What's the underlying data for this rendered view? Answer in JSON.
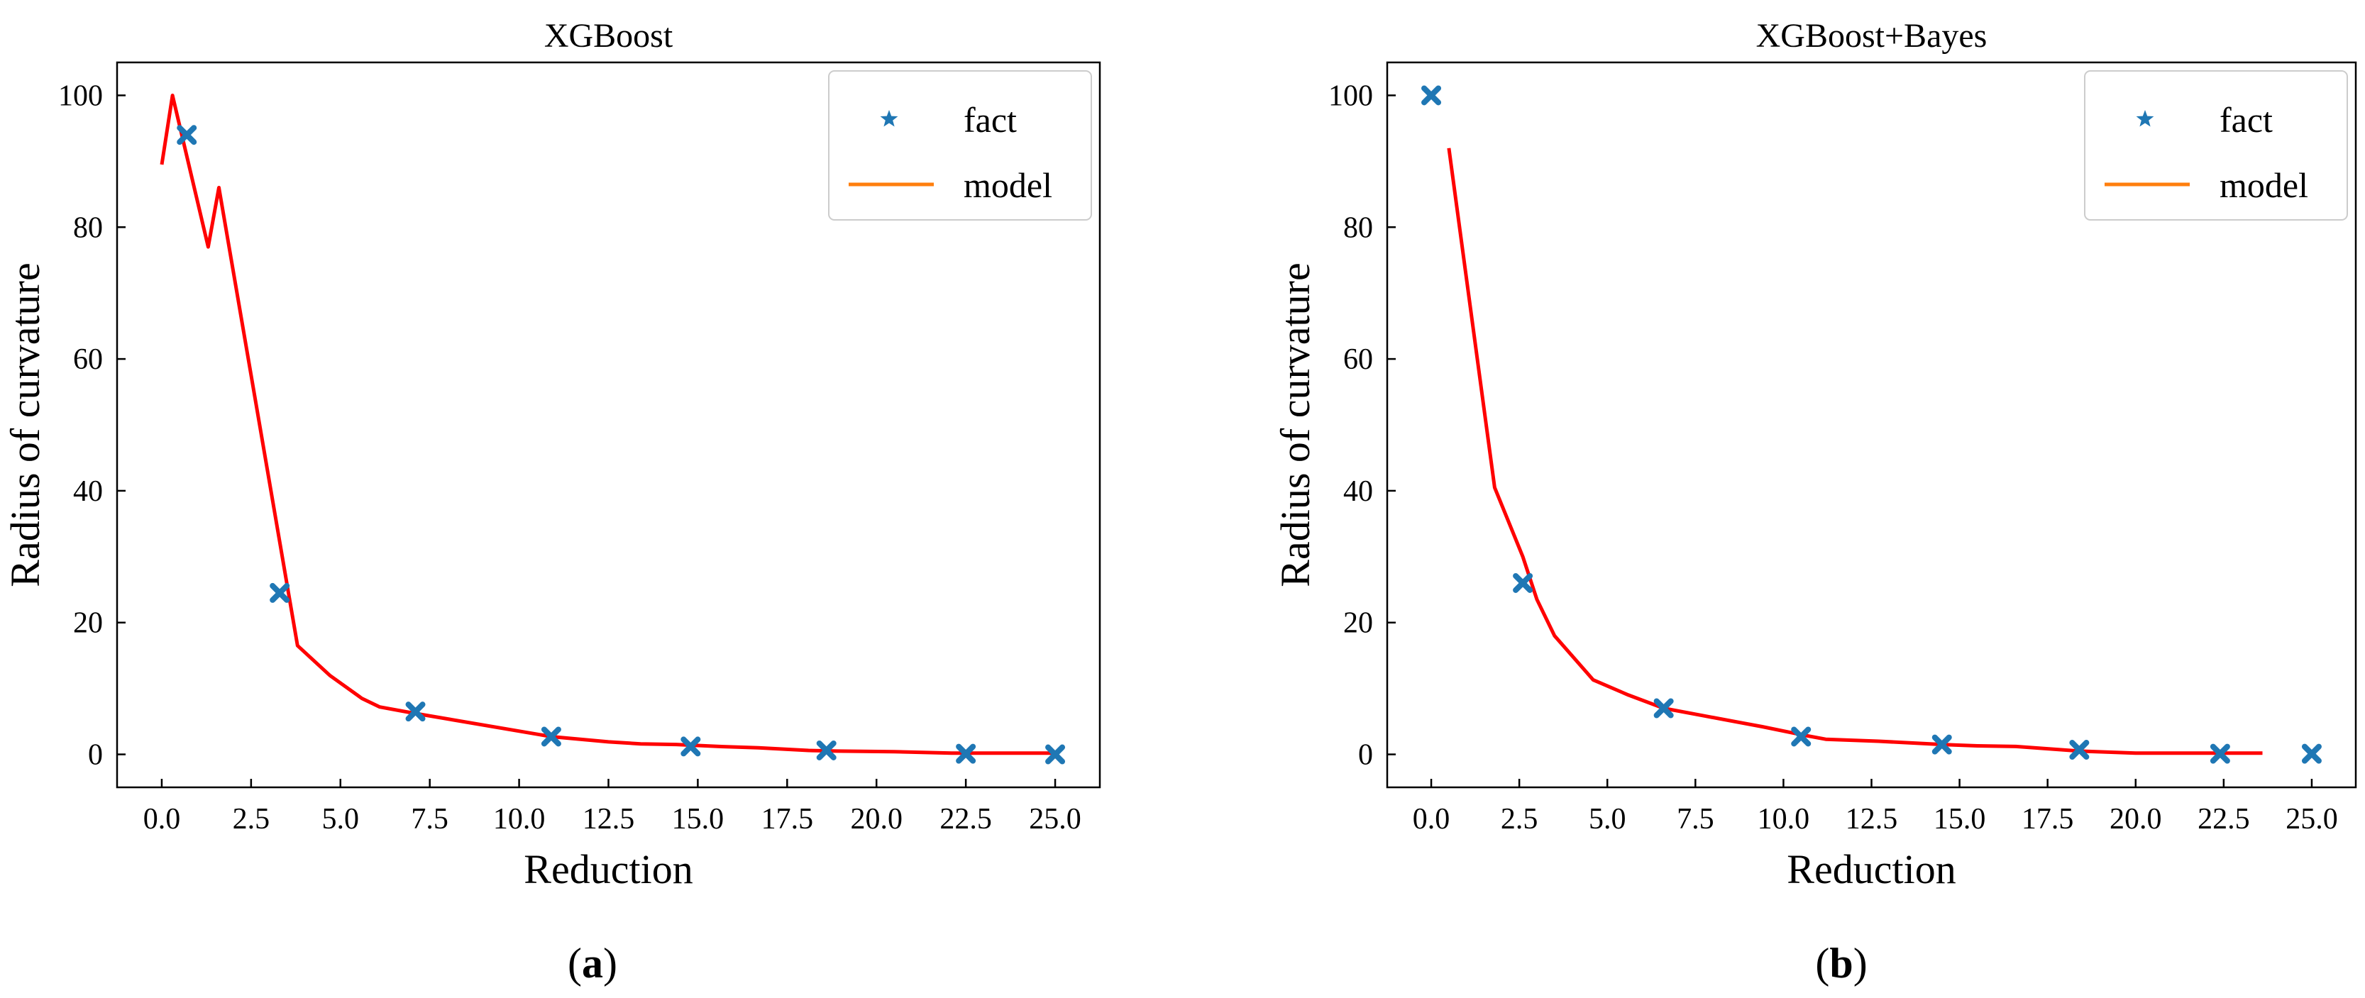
{
  "chart_data": [
    {
      "id": "a",
      "type": "line",
      "title": "XGBoost",
      "xlabel": "Reduction",
      "ylabel": "Radius of curvature",
      "xlim": [
        -1.25,
        26.25
      ],
      "ylim": [
        -5,
        105
      ],
      "xticks": [
        0,
        2.5,
        5,
        7.5,
        10,
        12.5,
        15,
        17.5,
        20,
        22.5,
        25
      ],
      "xtick_labels": [
        "0.0",
        "2.5",
        "5.0",
        "7.5",
        "10.0",
        "12.5",
        "15.0",
        "17.5",
        "20.0",
        "22.5",
        "25.0"
      ],
      "yticks": [
        0,
        20,
        40,
        60,
        80,
        100
      ],
      "ytick_labels": [
        "0",
        "20",
        "40",
        "60",
        "80",
        "100"
      ],
      "grid": false,
      "legend_position": "top-right",
      "caption": "a",
      "series": [
        {
          "name": "fact",
          "kind": "scatter",
          "color": "#1f77b4",
          "x": [
            0.7,
            3.3,
            7.1,
            10.9,
            14.8,
            18.6,
            22.5,
            25.0
          ],
          "y": [
            94,
            24.5,
            6.5,
            2.7,
            1.2,
            0.6,
            0.1,
            0.0
          ]
        },
        {
          "name": "model",
          "kind": "line",
          "legend_color": "#ff7f0e",
          "color": "#ff0000",
          "x": [
            0.0,
            0.3,
            1.3,
            1.6,
            3.8,
            4.7,
            5.6,
            6.1,
            7.0,
            10.9,
            12.5,
            13.4,
            14.4,
            15.6,
            16.7,
            18.1,
            18.9,
            20.5,
            22.1,
            22.5,
            24.5,
            25.0
          ],
          "y": [
            89.5,
            100,
            77,
            86,
            16.5,
            12,
            8.5,
            7.2,
            6.3,
            2.7,
            1.9,
            1.6,
            1.5,
            1.2,
            1.0,
            0.6,
            0.5,
            0.4,
            0.2,
            0.2,
            0.2,
            0.2
          ]
        }
      ]
    },
    {
      "id": "b",
      "type": "line",
      "title": "XGBoost+Bayes",
      "xlabel": "Reduction",
      "ylabel": "Radius of curvature",
      "xlim": [
        -1.25,
        26.25
      ],
      "ylim": [
        -5,
        105
      ],
      "xticks": [
        0,
        2.5,
        5,
        7.5,
        10,
        12.5,
        15,
        17.5,
        20,
        22.5,
        25
      ],
      "xtick_labels": [
        "0.0",
        "2.5",
        "5.0",
        "7.5",
        "10.0",
        "12.5",
        "15.0",
        "17.5",
        "20.0",
        "22.5",
        "25.0"
      ],
      "yticks": [
        0,
        20,
        40,
        60,
        80,
        100
      ],
      "ytick_labels": [
        "0",
        "20",
        "40",
        "60",
        "80",
        "100"
      ],
      "grid": false,
      "legend_position": "top-right",
      "caption": "b",
      "series": [
        {
          "name": "fact",
          "kind": "scatter",
          "color": "#1f77b4",
          "x": [
            0.0,
            2.6,
            6.6,
            10.5,
            14.5,
            18.4,
            22.4,
            25.0
          ],
          "y": [
            100,
            26,
            7,
            2.7,
            1.5,
            0.7,
            0.1,
            0.1
          ]
        },
        {
          "name": "model",
          "kind": "line",
          "legend_color": "#ff7f0e",
          "color": "#ff0000",
          "x": [
            0.5,
            1.8,
            2.6,
            3.0,
            3.5,
            4.6,
            5.6,
            6.6,
            7.8,
            9.4,
            10.5,
            11.2,
            12.7,
            14.5,
            15.5,
            16.6,
            18.4,
            20.0,
            21.5,
            23.6
          ],
          "y": [
            92,
            40.5,
            30,
            23.5,
            18,
            11.3,
            9,
            7,
            5.8,
            4.2,
            3,
            2.3,
            2,
            1.5,
            1.3,
            1.2,
            0.5,
            0.2,
            0.2,
            0.2
          ]
        }
      ]
    }
  ]
}
